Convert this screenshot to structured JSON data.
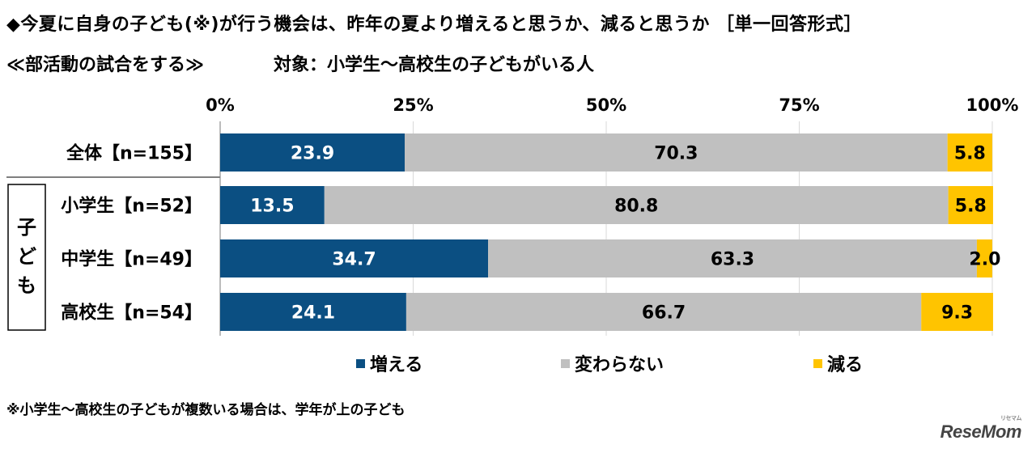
{
  "header": {
    "title": "◆今夏に自身の子ども(※)が行う機会は、昨年の夏より増えると思うか、減ると思うか ［単一回答形式］",
    "subtitle": "≪部活動の試合をする≫",
    "target": "対象：小学生～高校生の子どもがいる人"
  },
  "footnote": "※小学生～高校生の子どもが複数いる場合は、学年が上の子ども",
  "logo": {
    "text": "ReseMom",
    "small_text": "リセマム"
  },
  "colors": {
    "increase": "#0b4f82",
    "same": "#c0c0c0",
    "decrease": "#ffc400",
    "grid": "#d9d9d9",
    "separator": "#7f7f7f"
  },
  "chart_data": {
    "type": "bar",
    "orientation": "horizontal-stacked-100",
    "xlim": [
      0,
      100
    ],
    "x_ticks": [
      "0%",
      "25%",
      "50%",
      "75%",
      "100%"
    ],
    "categories": [
      "全体【n=155】",
      "小学生【n=52】",
      "中学生【n=49】",
      "高校生【n=54】"
    ],
    "group_label": "子ども",
    "series": [
      {
        "name": "増える",
        "values": [
          23.9,
          13.5,
          34.7,
          24.1
        ],
        "color": "#0b4f82"
      },
      {
        "name": "変わらない",
        "values": [
          70.3,
          80.8,
          63.3,
          66.7
        ],
        "color": "#c0c0c0"
      },
      {
        "name": "減る",
        "values": [
          5.8,
          5.8,
          2.0,
          9.3
        ],
        "color": "#ffc400"
      }
    ],
    "value_labels": [
      [
        "23.9",
        "70.3",
        "5.8"
      ],
      [
        "13.5",
        "80.8",
        "5.8"
      ],
      [
        "34.7",
        "63.3",
        "2.0"
      ],
      [
        "24.1",
        "66.7",
        "9.3"
      ]
    ],
    "legend_position": "bottom",
    "grid": true
  }
}
